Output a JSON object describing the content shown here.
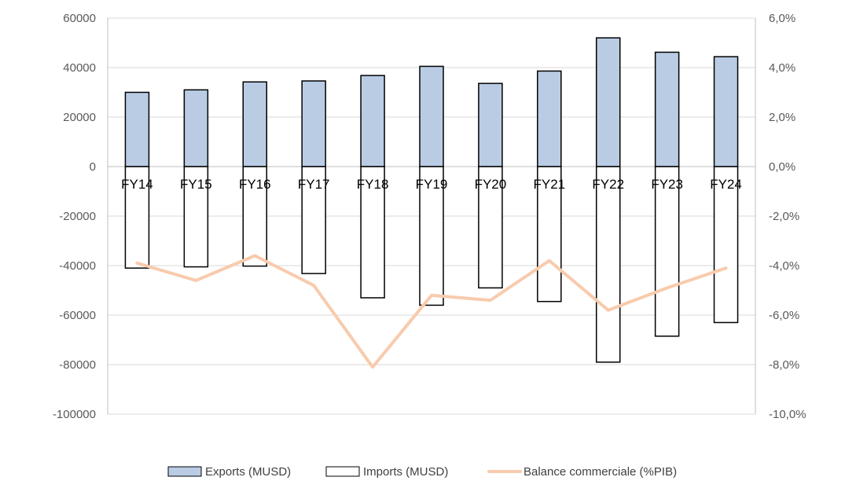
{
  "chart_data": {
    "type": "bar",
    "categories": [
      "FY14",
      "FY15",
      "FY16",
      "FY17",
      "FY18",
      "FY19",
      "FY20",
      "FY21",
      "FY22",
      "FY23",
      "FY24"
    ],
    "series": [
      {
        "name": "Exports (MUSD)",
        "type": "bar",
        "axis": "left",
        "color": "#b9cce4",
        "values": [
          30000,
          31000,
          34200,
          34600,
          36800,
          40500,
          33600,
          38600,
          52000,
          46200,
          44400
        ]
      },
      {
        "name": "Imports (MUSD)",
        "type": "bar",
        "axis": "left",
        "color": "#ffffff",
        "values": [
          -41000,
          -40500,
          -40200,
          -43200,
          -53000,
          -56000,
          -49000,
          -54500,
          -79000,
          -68500,
          -63000
        ]
      },
      {
        "name": "Balance commerciale (%PIB)",
        "type": "line",
        "axis": "right",
        "color": "#f8cbad",
        "values": [
          -3.9,
          -4.6,
          -3.6,
          -4.8,
          -8.1,
          -5.2,
          -5.4,
          -3.8,
          -5.8,
          -4.9,
          -4.1
        ]
      }
    ],
    "y_left": {
      "min": -100000,
      "max": 60000,
      "ticks": [
        "60000",
        "40000",
        "20000",
        "0",
        "-20000",
        "-40000",
        "-60000",
        "-80000",
        "-100000"
      ]
    },
    "y_right": {
      "min": -10,
      "max": 6,
      "ticks": [
        "6,0%",
        "4,0%",
        "2,0%",
        "0,0%",
        "-2,0%",
        "-4,0%",
        "-6,0%",
        "-8,0%",
        "-10,0%"
      ]
    },
    "grid": true,
    "legend_position": "bottom"
  }
}
